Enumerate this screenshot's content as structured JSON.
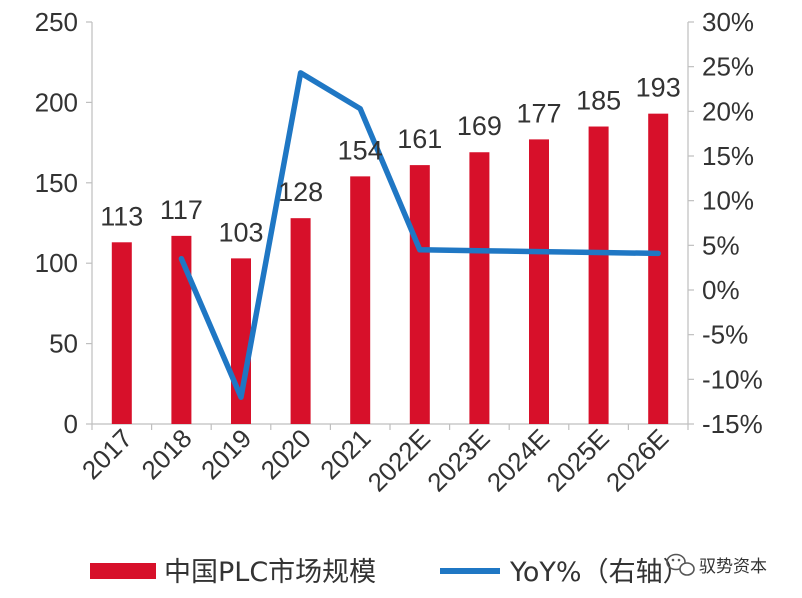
{
  "chart_data": {
    "type": "bar",
    "categories": [
      "2017",
      "2018",
      "2019",
      "2020",
      "2021",
      "2022E",
      "2023E",
      "2024E",
      "2025E",
      "2026E"
    ],
    "series": [
      {
        "name": "中国PLC市场规模",
        "type": "bar",
        "axis": "left",
        "values": [
          113,
          117,
          103,
          128,
          154,
          161,
          169,
          177,
          185,
          193
        ]
      },
      {
        "name": "YoY%（右轴）",
        "type": "line",
        "axis": "right",
        "values": [
          null,
          3.5,
          -12.0,
          24.3,
          20.3,
          4.5,
          4.4,
          4.3,
          4.2,
          4.1
        ]
      }
    ],
    "title": "",
    "xlabel": "",
    "ylabel": "",
    "y_left": {
      "min": 0,
      "max": 250,
      "ticks": [
        "0",
        "50",
        "100",
        "150",
        "200",
        "250"
      ]
    },
    "y_right": {
      "min": -15,
      "max": 30,
      "ticks": [
        "-15%",
        "-10%",
        "-5%",
        "0%",
        "5%",
        "10%",
        "15%",
        "20%",
        "25%",
        "30%"
      ]
    },
    "grid": false,
    "legend_position": "bottom",
    "colors": {
      "bar": "#d7102a",
      "line": "#1f77c4"
    }
  },
  "watermark": {
    "text": "驭势资本",
    "icon": "wechat-icon"
  }
}
